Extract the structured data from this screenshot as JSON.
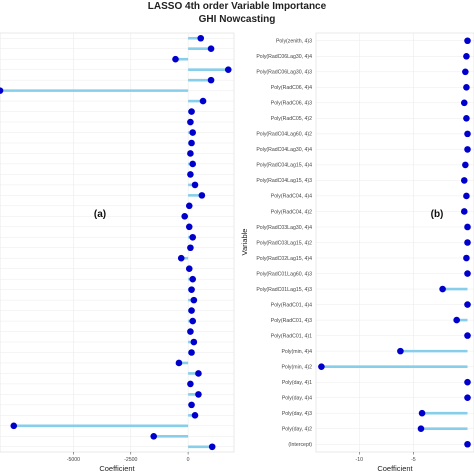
{
  "header": {
    "title_line1": "LASSO 4th order Variable Importance",
    "title_line2": "GHI Nowcasting"
  },
  "colors": {
    "stem": "#87ceeb",
    "point": "#0000cd",
    "grid": "#ebebeb",
    "panel_border": "#d9d9d9"
  },
  "chart_data": [
    {
      "type": "lollipop",
      "panel_label": "(a)",
      "xlabel": "Coefficient",
      "ylabel": "",
      "xlim": [
        -8200,
        2000
      ],
      "xticks": [
        -5000,
        -2500,
        0
      ],
      "xtick_labels": [
        "-5000",
        "-2500",
        "0"
      ],
      "grid": true,
      "values": [
        1050,
        -1500,
        -7600,
        300,
        150,
        450,
        100,
        450,
        -400,
        150,
        250,
        100,
        200,
        150,
        250,
        150,
        200,
        50,
        -300,
        100,
        200,
        50,
        -150,
        50,
        600,
        300,
        100,
        200,
        100,
        150,
        200,
        100,
        150,
        650,
        -8200,
        1000,
        1750,
        -550,
        1000,
        550
      ]
    },
    {
      "type": "lollipop",
      "panel_label": "(b)",
      "xlabel": "Coefficient",
      "ylabel": "Variable",
      "xlim": [
        -14,
        0.6
      ],
      "xticks": [
        -10,
        -5
      ],
      "xtick_labels": [
        "-10",
        "-5"
      ],
      "grid": true,
      "categories": [
        "(Intercept)",
        "Poly(day, 4)2",
        "Poly(day, 4)3",
        "Poly(day, 4)4",
        "Poly(day, 4)1",
        "Poly(min, 4)2",
        "Poly(min, 4)4",
        "Poly(RadC01, 4)1",
        "Poly(RadC01, 4)3",
        "Poly(RadC01, 4)4",
        "Poly(RadC01Lag15, 4)3",
        "Poly(RadC01Lag60, 4)3",
        "Poly(RadC02Lag15, 4)4",
        "Poly(RadC03Lag15, 4)2",
        "Poly(RadC03Lag30, 4)4",
        "Poly(RadC04, 4)2",
        "Poly(RadC04, 4)4",
        "Poly(RadC04Lag15, 4)3",
        "Poly(RadC04Lag15, 4)4",
        "Poly(RadC04Lag30, 4)4",
        "Poly(RadC04Lag60, 4)2",
        "Poly(RadC05, 4)2",
        "Poly(RadC06, 4)3",
        "Poly(RadC06, 4)4",
        "Poly(RadC06Lag30, 4)3",
        "Poly(RadC06Lag30, 4)4",
        "Poly(zenith, 4)3"
      ],
      "values": [
        0.0,
        -4.3,
        -4.2,
        0.0,
        0.0,
        -13.5,
        -6.2,
        0.0,
        -1.0,
        0.0,
        -2.3,
        0.0,
        -0.1,
        0.0,
        0.0,
        -0.3,
        -0.1,
        -0.3,
        -0.2,
        0.0,
        0.0,
        -0.1,
        -0.3,
        -0.1,
        -0.2,
        -0.1,
        0.0
      ]
    }
  ]
}
